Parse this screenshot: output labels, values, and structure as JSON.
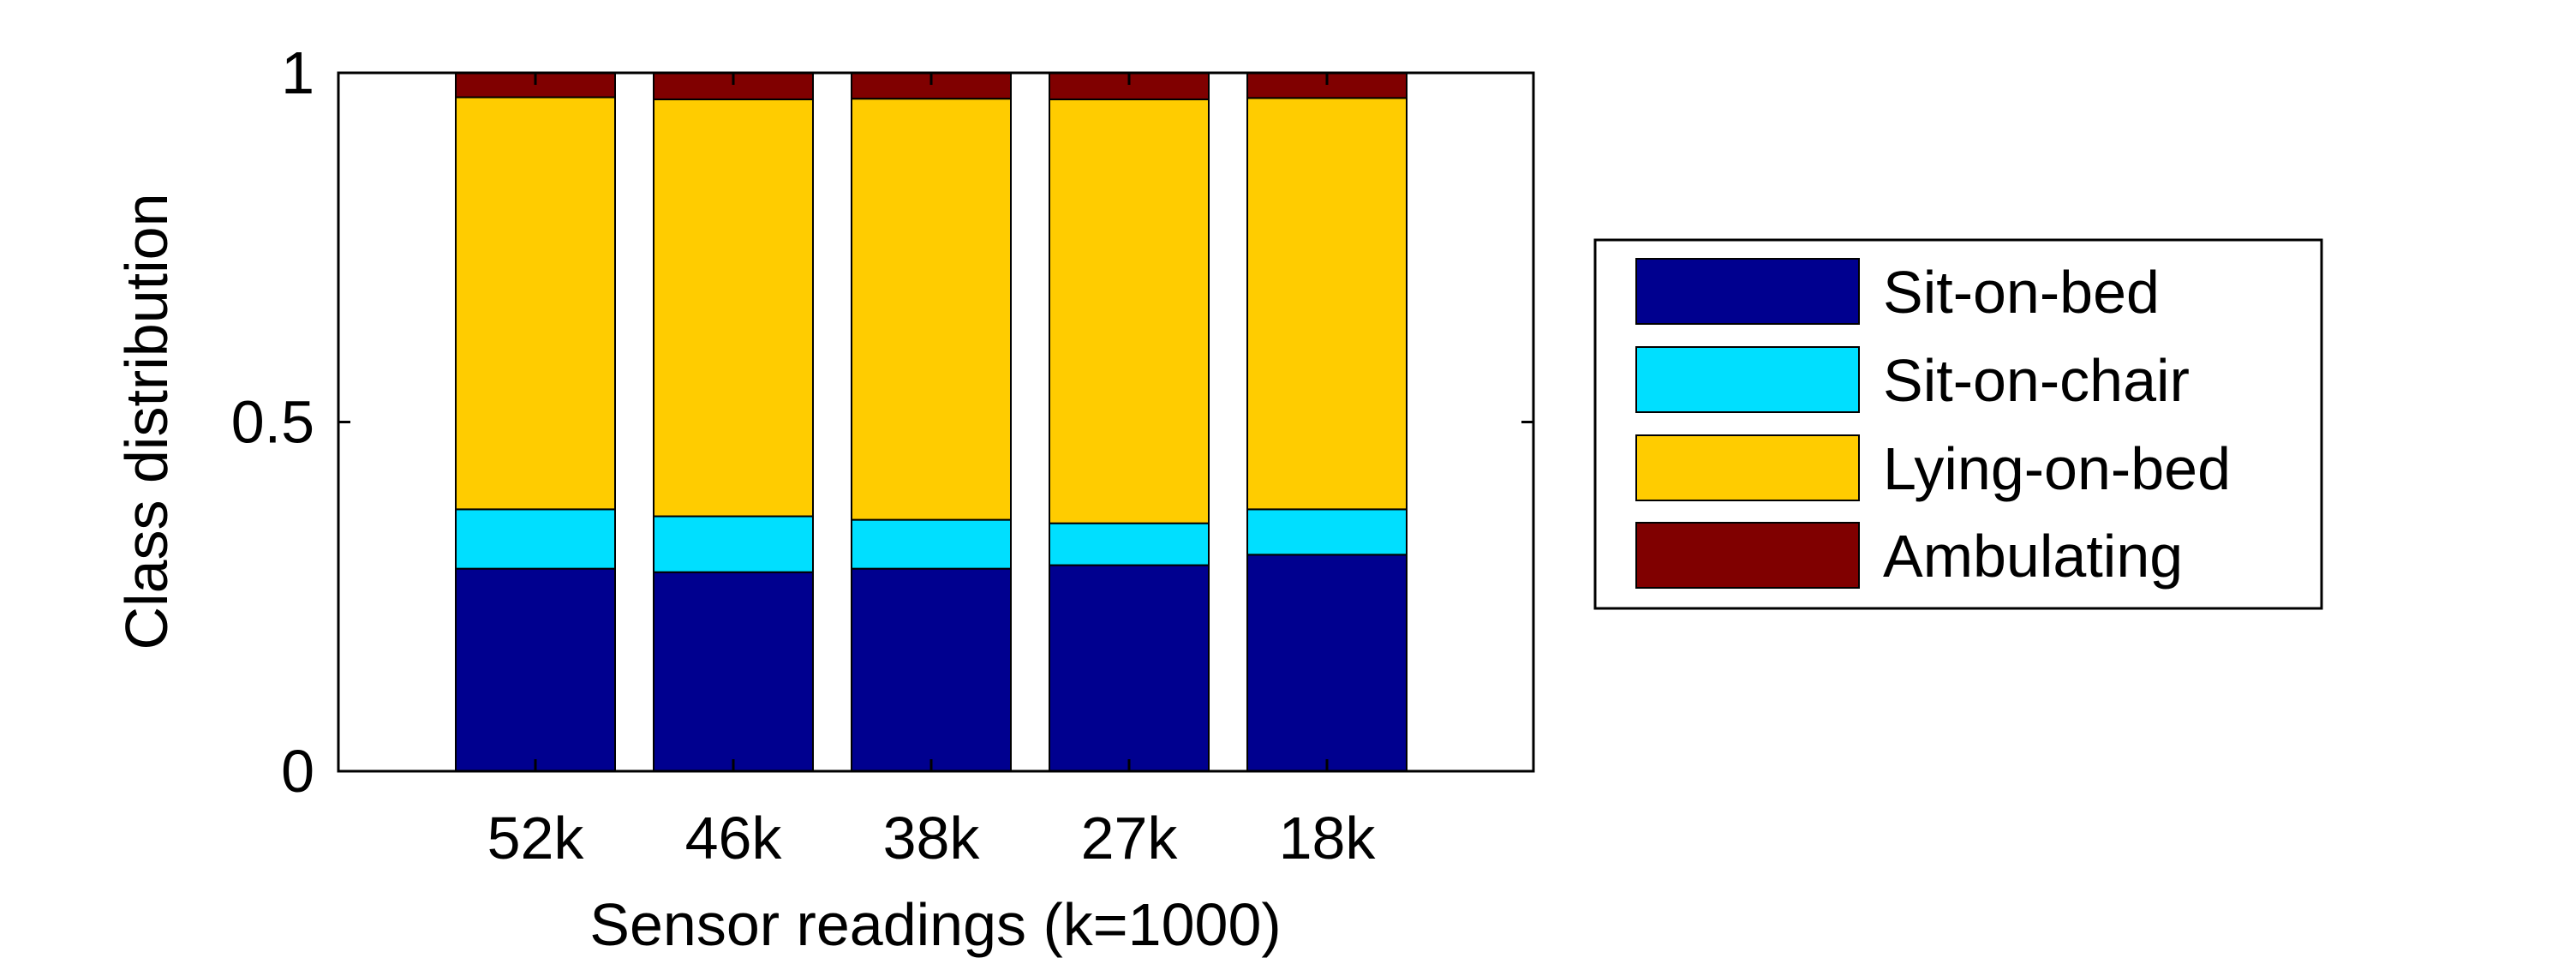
{
  "chart_data": {
    "type": "bar",
    "stacked": true,
    "title": "",
    "xlabel": "Sensor readings (k=1000)",
    "ylabel": "Class distribution",
    "categories": [
      "52k",
      "46k",
      "38k",
      "27k",
      "18k"
    ],
    "series": [
      {
        "name": "Sit-on-bed",
        "color": "#00008f",
        "values": [
          0.29,
          0.285,
          0.29,
          0.295,
          0.31
        ]
      },
      {
        "name": "Sit-on-chair",
        "color": "#00dfff",
        "values": [
          0.085,
          0.08,
          0.07,
          0.06,
          0.065
        ]
      },
      {
        "name": "Lying-on-bed",
        "color": "#ffcc00",
        "values": [
          0.59,
          0.597,
          0.603,
          0.607,
          0.589
        ]
      },
      {
        "name": "Ambulating",
        "color": "#800000",
        "values": [
          0.035,
          0.038,
          0.037,
          0.038,
          0.036
        ]
      }
    ],
    "ylim": [
      0,
      1
    ],
    "yticks": [
      0,
      0.5,
      1
    ],
    "ytick_labels": [
      "0",
      "0.5",
      "1"
    ],
    "grid": false,
    "legend_position": "right (outside plot)"
  }
}
